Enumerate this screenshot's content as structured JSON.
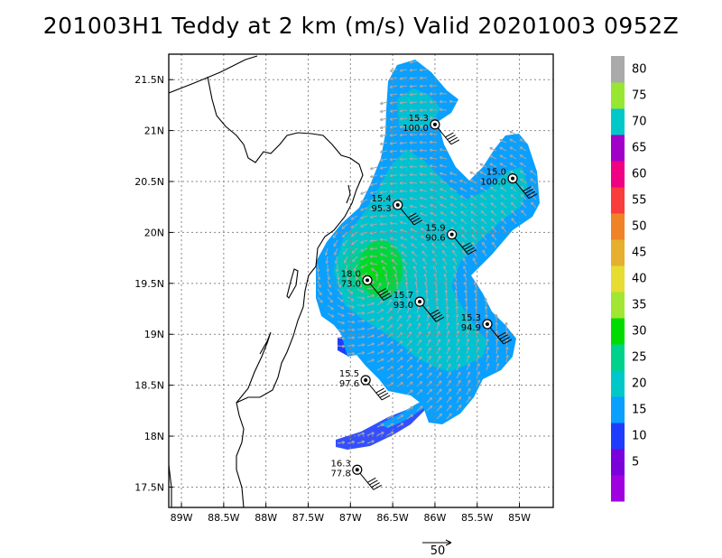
{
  "title": "201003H1 Teddy at 2 km (m/s) Valid 20201003 0952Z",
  "map": {
    "lon_range": [
      -89.15,
      -84.6
    ],
    "lat_range": [
      17.3,
      21.75
    ],
    "x_ticks": [
      {
        "lon": -89.0,
        "label": "89W"
      },
      {
        "lon": -88.5,
        "label": "88.5W"
      },
      {
        "lon": -88.0,
        "label": "88W"
      },
      {
        "lon": -87.5,
        "label": "87.5W"
      },
      {
        "lon": -87.0,
        "label": "87W"
      },
      {
        "lon": -86.5,
        "label": "86.5W"
      },
      {
        "lon": -86.0,
        "label": "86W"
      },
      {
        "lon": -85.5,
        "label": "85.5W"
      },
      {
        "lon": -85.0,
        "label": "85W"
      }
    ],
    "y_ticks": [
      {
        "lat": 17.5,
        "label": "17.5N"
      },
      {
        "lat": 18.0,
        "label": "18N"
      },
      {
        "lat": 18.5,
        "label": "18.5N"
      },
      {
        "lat": 19.0,
        "label": "19N"
      },
      {
        "lat": 19.5,
        "label": "19.5N"
      },
      {
        "lat": 20.0,
        "label": "20N"
      },
      {
        "lat": 20.5,
        "label": "20.5N"
      },
      {
        "lat": 21.0,
        "label": "21N"
      },
      {
        "lat": 21.5,
        "label": "21.5N"
      }
    ],
    "grid": true
  },
  "colorbar": {
    "levels": [
      {
        "label": "",
        "color": "#a001e0"
      },
      {
        "label": "5",
        "color": "#7a00dc"
      },
      {
        "label": "10",
        "color": "#1e3cff"
      },
      {
        "label": "15",
        "color": "#0aa0ff"
      },
      {
        "label": "20",
        "color": "#00c8c8"
      },
      {
        "label": "25",
        "color": "#00d28c"
      },
      {
        "label": "30",
        "color": "#00dc00"
      },
      {
        "label": "35",
        "color": "#a0e632"
      },
      {
        "label": "40",
        "color": "#e6dc32"
      },
      {
        "label": "45",
        "color": "#e6af2d"
      },
      {
        "label": "50",
        "color": "#f08228"
      },
      {
        "label": "55",
        "color": "#fa3c3c"
      },
      {
        "label": "60",
        "color": "#f00082"
      },
      {
        "label": "65",
        "color": "#a000c8"
      },
      {
        "label": "70",
        "color": "#00c8c8"
      },
      {
        "label": "75",
        "color": "#96e632"
      },
      {
        "label": "80",
        "color": "#aaaaaa"
      }
    ]
  },
  "reference_vector": {
    "label": "50"
  },
  "dropsondes": [
    {
      "lon": -86.0,
      "lat": 21.06,
      "pressure": "15.3",
      "wind": "100.0"
    },
    {
      "lon": -85.08,
      "lat": 20.53,
      "pressure": "15.0",
      "wind": "100.0"
    },
    {
      "lon": -86.44,
      "lat": 20.27,
      "pressure": "15.4",
      "wind": "95.3"
    },
    {
      "lon": -85.8,
      "lat": 19.98,
      "pressure": "15.9",
      "wind": "90.6"
    },
    {
      "lon": -86.8,
      "lat": 19.53,
      "pressure": "18.0",
      "wind": "73.0"
    },
    {
      "lon": -86.18,
      "lat": 19.32,
      "pressure": "15.7",
      "wind": "93.0"
    },
    {
      "lon": -85.38,
      "lat": 19.1,
      "pressure": "15.3",
      "wind": "94.9"
    },
    {
      "lon": -86.82,
      "lat": 18.55,
      "pressure": "15.5",
      "wind": "97.6"
    },
    {
      "lon": -86.92,
      "lat": 17.67,
      "pressure": "16.3",
      "wind": "77.8"
    }
  ]
}
